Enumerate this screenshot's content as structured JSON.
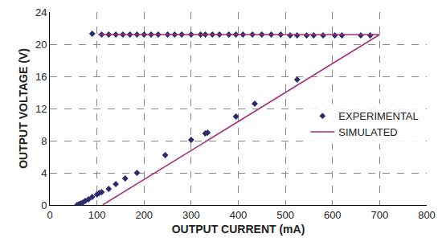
{
  "chart_data": {
    "type": "scatter",
    "x_label": "OUTPUT CURRENT (mA)",
    "y_label": "OUTPUT VOLTAGE (V)",
    "xlim": [
      0,
      800
    ],
    "xticks": [
      0,
      100,
      200,
      300,
      400,
      500,
      600,
      700,
      800
    ],
    "ylim": [
      0,
      24
    ],
    "yticks": [
      0,
      4,
      8,
      12,
      16,
      20,
      24
    ],
    "grid": true,
    "legend": "right",
    "series": [
      {
        "name": "EXPERIMENTAL",
        "type": "scatter",
        "marker": "diamond",
        "color": "#2b2b6e",
        "x": [
          90,
          110,
          125,
          140,
          155,
          170,
          185,
          200,
          215,
          230,
          250,
          265,
          280,
          300,
          320,
          330,
          345,
          360,
          380,
          395,
          410,
          430,
          450,
          470,
          490,
          510,
          525,
          545,
          560,
          580,
          605,
          620,
          660,
          680,
          58,
          62,
          66,
          70,
          75,
          82,
          90,
          100,
          105,
          110,
          125,
          140,
          160,
          185,
          245,
          300,
          330,
          335,
          395,
          435,
          525
        ],
        "values": [
          21.3,
          21.2,
          21.2,
          21.2,
          21.2,
          21.2,
          21.2,
          21.2,
          21.2,
          21.2,
          21.2,
          21.2,
          21.2,
          21.2,
          21.2,
          21.2,
          21.2,
          21.2,
          21.2,
          21.2,
          21.2,
          21.2,
          21.2,
          21.2,
          21.2,
          21.1,
          21.1,
          21.1,
          21.1,
          21.1,
          21.1,
          21.1,
          21.1,
          21.1,
          0.0,
          0.1,
          0.2,
          0.3,
          0.5,
          0.7,
          1.0,
          1.3,
          1.5,
          1.6,
          2.0,
          2.6,
          3.3,
          4.0,
          6.2,
          8.1,
          8.9,
          9.0,
          11.0,
          12.6,
          15.6
        ]
      },
      {
        "name": "SIMULATED",
        "type": "line",
        "line_style": "solid",
        "color": "#a3337a",
        "x": [
          112,
          700,
          103
        ],
        "values": [
          0,
          21.2,
          21.2
        ]
      }
    ]
  }
}
